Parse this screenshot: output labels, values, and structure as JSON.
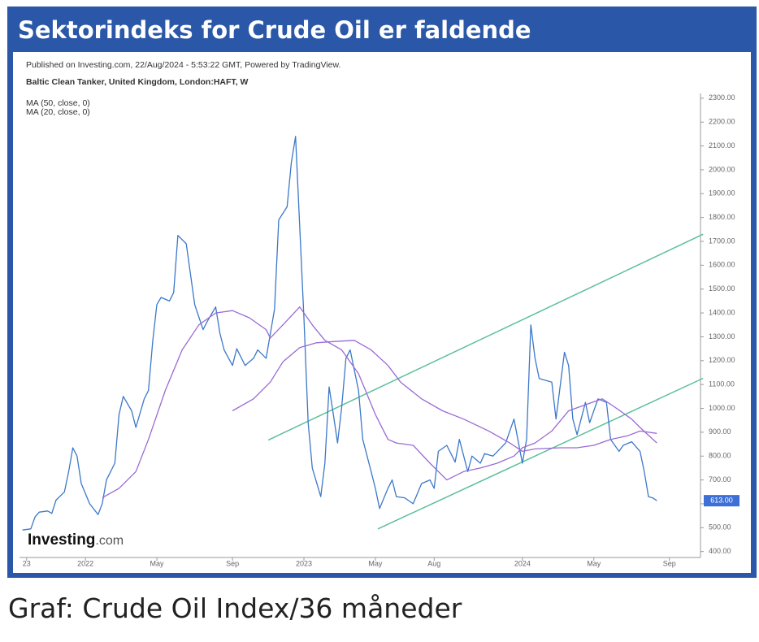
{
  "header": {
    "title": "Sektorindeks for Crude Oil er faldende"
  },
  "caption": "Graf: Crude Oil Index/36 måneder",
  "chart_data": {
    "type": "line",
    "title": "Published on Investing.com, 22/Aug/2024 - 5:53:22 GMT, Powered by TradingView.",
    "subtitle": "Baltic Clean Tanker, United Kingdom, London:HAFT, W",
    "watermark": [
      "Investing",
      ".com"
    ],
    "xlim": [
      -15.5,
      146
    ],
    "ylim": [
      375,
      2320
    ],
    "xticks": [
      {
        "value": -14,
        "label": "23"
      },
      {
        "value": 0,
        "label": "2022"
      },
      {
        "value": 17,
        "label": "May"
      },
      {
        "value": 35,
        "label": "Sep"
      },
      {
        "value": 52,
        "label": "2023"
      },
      {
        "value": 69,
        "label": "May"
      },
      {
        "value": 83,
        "label": "Aug"
      },
      {
        "value": 104,
        "label": "2024"
      },
      {
        "value": 121,
        "label": "May"
      },
      {
        "value": 139,
        "label": "Sep"
      }
    ],
    "yticks": [
      {
        "value": 400,
        "label": "400.00"
      },
      {
        "value": 500,
        "label": "500.00"
      },
      {
        "value": 600,
        "label": "600.00"
      },
      {
        "value": 700,
        "label": "700.00"
      },
      {
        "value": 800,
        "label": "800.00"
      },
      {
        "value": 900,
        "label": "900.00"
      },
      {
        "value": 1000,
        "label": "1000.00"
      },
      {
        "value": 1100,
        "label": "1100.00"
      },
      {
        "value": 1200,
        "label": "1200.00"
      },
      {
        "value": 1300,
        "label": "1300.00"
      },
      {
        "value": 1400,
        "label": "1400.00"
      },
      {
        "value": 1500,
        "label": "1500.00"
      },
      {
        "value": 1600,
        "label": "1600.00"
      },
      {
        "value": 1700,
        "label": "1700.00"
      },
      {
        "value": 1800,
        "label": "1800.00"
      },
      {
        "value": 1900,
        "label": "1900.00"
      },
      {
        "value": 2000,
        "label": "2000.00"
      },
      {
        "value": 2100,
        "label": "2100.00"
      },
      {
        "value": 2200,
        "label": "2200.00"
      },
      {
        "value": 2300,
        "label": "2300.00"
      }
    ],
    "last_price": {
      "value": 613,
      "label": "613.00",
      "color": "#3d6fd6"
    },
    "series": [
      {
        "color": "#3c78c8",
        "x": [
          -15,
          -13,
          -12,
          -11,
          -9,
          -8,
          -7,
          -5,
          -4,
          -3,
          -2,
          -1,
          1,
          3,
          4,
          5,
          7,
          8,
          9,
          11,
          12,
          14,
          15,
          16,
          17,
          18,
          20,
          21,
          22,
          24,
          26,
          28,
          29,
          31,
          32,
          33,
          35,
          36,
          38,
          40,
          41,
          43,
          45,
          46,
          48,
          49,
          50,
          52,
          53,
          54,
          56,
          57,
          58,
          59,
          60,
          61,
          62,
          63,
          65,
          66,
          68,
          69,
          70,
          72,
          73,
          74,
          76,
          78,
          80,
          82,
          83,
          84,
          86,
          88,
          89,
          91,
          92,
          94,
          95,
          97,
          100,
          102,
          104,
          105,
          106,
          107,
          108,
          111,
          112,
          114,
          115,
          116,
          117,
          119,
          120,
          122,
          124,
          125,
          127,
          128,
          130,
          132,
          133,
          134,
          135,
          136
        ],
        "values": [
          490,
          495,
          545,
          565,
          570,
          560,
          615,
          650,
          735,
          835,
          800,
          685,
          600,
          555,
          600,
          700,
          770,
          975,
          1050,
          990,
          920,
          1040,
          1075,
          1280,
          1435,
          1465,
          1450,
          1485,
          1725,
          1690,
          1435,
          1330,
          1365,
          1425,
          1315,
          1245,
          1180,
          1250,
          1180,
          1210,
          1245,
          1210,
          1415,
          1790,
          1845,
          2030,
          2140,
          1380,
          940,
          750,
          630,
          770,
          1090,
          975,
          855,
          1005,
          1210,
          1245,
          1075,
          870,
          735,
          665,
          580,
          665,
          700,
          630,
          625,
          600,
          685,
          700,
          665,
          820,
          845,
          775,
          870,
          735,
          800,
          770,
          810,
          800,
          855,
          955,
          770,
          870,
          1350,
          1210,
          1125,
          1110,
          955,
          1235,
          1180,
          955,
          890,
          1025,
          940,
          1040,
          1025,
          870,
          820,
          845,
          860,
          820,
          735,
          630,
          625,
          613
        ]
      },
      {
        "name": "MA (20, close, 0)",
        "color": "#9a6ad6",
        "x": [
          4,
          8,
          12,
          15,
          19,
          23,
          27,
          31,
          35,
          39,
          43,
          44,
          47,
          51,
          54,
          57,
          61,
          65,
          69,
          72,
          74,
          78,
          82,
          86,
          90,
          94,
          98,
          102,
          104,
          107,
          111,
          115,
          119,
          123,
          126,
          130,
          132,
          136
        ],
        "values": [
          625,
          665,
          735,
          870,
          1075,
          1245,
          1350,
          1400,
          1410,
          1380,
          1330,
          1295,
          1350,
          1425,
          1350,
          1285,
          1245,
          1145,
          975,
          870,
          855,
          845,
          770,
          700,
          735,
          750,
          770,
          800,
          835,
          855,
          905,
          990,
          1015,
          1040,
          1005,
          955,
          920,
          855
        ]
      },
      {
        "name": "MA (50, close, 0)",
        "color": "#9a6ad6",
        "x": [
          35,
          40,
          44,
          47,
          51,
          55,
          59,
          64,
          68,
          72,
          75,
          80,
          85,
          90,
          96,
          101,
          104,
          107,
          113,
          117,
          121,
          125,
          129,
          132,
          136
        ],
        "values": [
          990,
          1040,
          1110,
          1195,
          1255,
          1275,
          1280,
          1285,
          1245,
          1180,
          1110,
          1040,
          990,
          955,
          905,
          855,
          820,
          830,
          835,
          835,
          845,
          870,
          885,
          905,
          895
        ]
      }
    ],
    "trendlines": [
      {
        "color": "#5cbf9a",
        "x": [
          43.5,
          147
        ],
        "values": [
          867,
          1730
        ]
      },
      {
        "color": "#5cbf9a",
        "x": [
          69.6,
          147
        ],
        "values": [
          495,
          1126
        ]
      }
    ]
  }
}
